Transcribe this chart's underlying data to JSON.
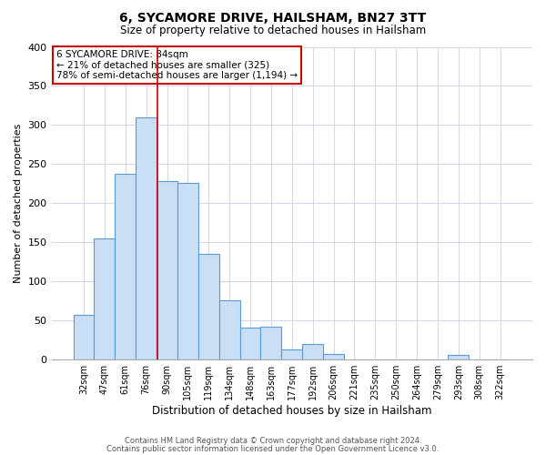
{
  "title": "6, SYCAMORE DRIVE, HAILSHAM, BN27 3TT",
  "subtitle": "Size of property relative to detached houses in Hailsham",
  "xlabel": "Distribution of detached houses by size in Hailsham",
  "ylabel": "Number of detached properties",
  "bar_labels": [
    "32sqm",
    "47sqm",
    "61sqm",
    "76sqm",
    "90sqm",
    "105sqm",
    "119sqm",
    "134sqm",
    "148sqm",
    "163sqm",
    "177sqm",
    "192sqm",
    "206sqm",
    "221sqm",
    "235sqm",
    "250sqm",
    "264sqm",
    "279sqm",
    "293sqm",
    "308sqm",
    "322sqm"
  ],
  "bar_values": [
    57,
    155,
    237,
    310,
    228,
    226,
    135,
    75,
    40,
    42,
    12,
    19,
    7,
    0,
    0,
    0,
    0,
    0,
    5,
    0,
    0
  ],
  "bar_color": "#c9dff5",
  "bar_edge_color": "#5b9bd5",
  "ylim": [
    0,
    400
  ],
  "yticks": [
    0,
    50,
    100,
    150,
    200,
    250,
    300,
    350,
    400
  ],
  "annotation_box_text": "6 SYCAMORE DRIVE: 84sqm\n← 21% of detached houses are smaller (325)\n78% of semi-detached houses are larger (1,194) →",
  "footnote1": "Contains HM Land Registry data © Crown copyright and database right 2024.",
  "footnote2": "Contains public sector information licensed under the Open Government Licence v3.0.",
  "box_color": "#ffffff",
  "box_edge_color": "#cc0000",
  "background_color": "#ffffff",
  "grid_color": "#d0d8e8",
  "vline_color": "#cc0000",
  "vline_x": 3.53
}
